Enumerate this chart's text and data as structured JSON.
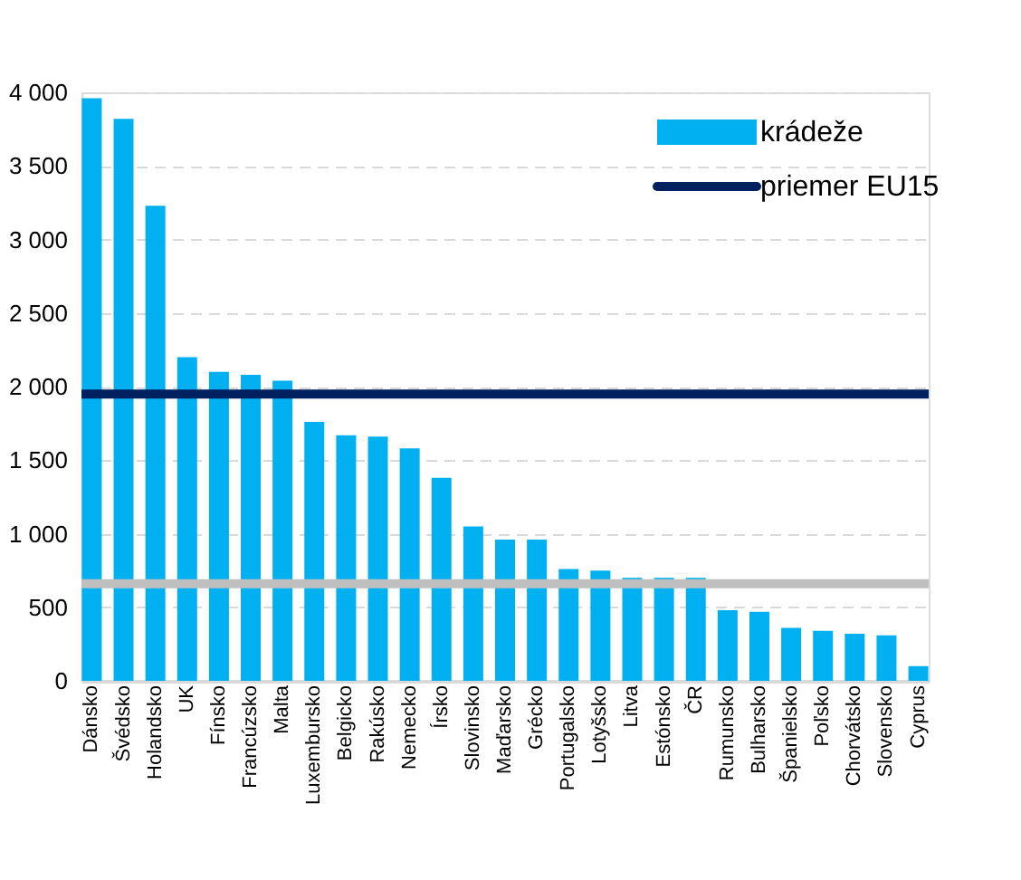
{
  "chart_data": {
    "type": "bar",
    "categories": [
      "Dánsko",
      "Švédsko",
      "Holandsko",
      "UK",
      "Fínsko",
      "Francúzsko",
      "Malta",
      "Luxembursko",
      "Belgicko",
      "Rakúsko",
      "Nemecko",
      "Írsko",
      "Slovinsko",
      "Maďarsko",
      "Grécko",
      "Portugalsko",
      "Lotyšsko",
      "Litva",
      "Estónsko",
      "ČR",
      "Rumunsko",
      "Bulharsko",
      "Španielsko",
      "Poľsko",
      "Chorvátsko",
      "Slovensko",
      "Cyprus"
    ],
    "series": [
      {
        "name": "krádeže",
        "color": "#00b0f0",
        "values": [
          3960,
          3820,
          3230,
          2200,
          2100,
          2080,
          2040,
          1760,
          1670,
          1660,
          1580,
          1380,
          1050,
          960,
          960,
          760,
          750,
          700,
          700,
          700,
          480,
          470,
          360,
          340,
          320,
          310,
          100
        ]
      }
    ],
    "ref_lines": [
      {
        "axis": "y",
        "value": 1950,
        "label": "priemer EU15",
        "color": "#002060"
      },
      {
        "axis": "y",
        "value": 660,
        "color": "#bfbfbf"
      }
    ],
    "ylim": [
      0,
      4000
    ],
    "yticks": [
      0,
      500,
      {
        "value": 1000,
        "label": "1 000"
      },
      {
        "value": 1500,
        "label": "1 500"
      },
      {
        "value": 2000,
        "label": "2 000"
      },
      {
        "value": 2500,
        "label": "2 500"
      },
      {
        "value": 3000,
        "label": "3 000"
      },
      {
        "value": 3500,
        "label": "3 500"
      },
      {
        "value": 4000,
        "label": "4 000"
      }
    ],
    "grid": "y",
    "legend": "top right"
  }
}
